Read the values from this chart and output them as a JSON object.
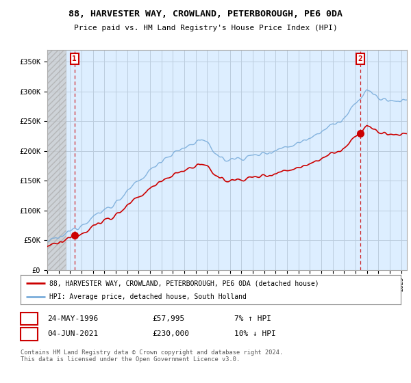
{
  "title": "88, HARVESTER WAY, CROWLAND, PETERBOROUGH, PE6 0DA",
  "subtitle": "Price paid vs. HM Land Registry's House Price Index (HPI)",
  "ylabel_ticks": [
    "£0",
    "£50K",
    "£100K",
    "£150K",
    "£200K",
    "£250K",
    "£300K",
    "£350K"
  ],
  "ytick_values": [
    0,
    50000,
    100000,
    150000,
    200000,
    250000,
    300000,
    350000
  ],
  "ylim": [
    0,
    370000
  ],
  "xlim_start": 1994.0,
  "xlim_end": 2025.5,
  "hpi_color": "#7aaddb",
  "price_color": "#cc0000",
  "sale1_x": 1996.39,
  "sale1_y": 57995,
  "sale2_x": 2021.42,
  "sale2_y": 230000,
  "vline_color": "#cc0000",
  "legend_label1": "88, HARVESTER WAY, CROWLAND, PETERBOROUGH, PE6 0DA (detached house)",
  "legend_label2": "HPI: Average price, detached house, South Holland",
  "table_row1_num": "1",
  "table_row1_date": "24-MAY-1996",
  "table_row1_price": "£57,995",
  "table_row1_hpi": "7% ↑ HPI",
  "table_row2_num": "2",
  "table_row2_date": "04-JUN-2021",
  "table_row2_price": "£230,000",
  "table_row2_hpi": "10% ↓ HPI",
  "footer": "Contains HM Land Registry data © Crown copyright and database right 2024.\nThis data is licensed under the Open Government Licence v3.0.",
  "grid_color": "#bbccdd",
  "bg_color": "#ddeeff",
  "hatch_color": "#cccccc"
}
